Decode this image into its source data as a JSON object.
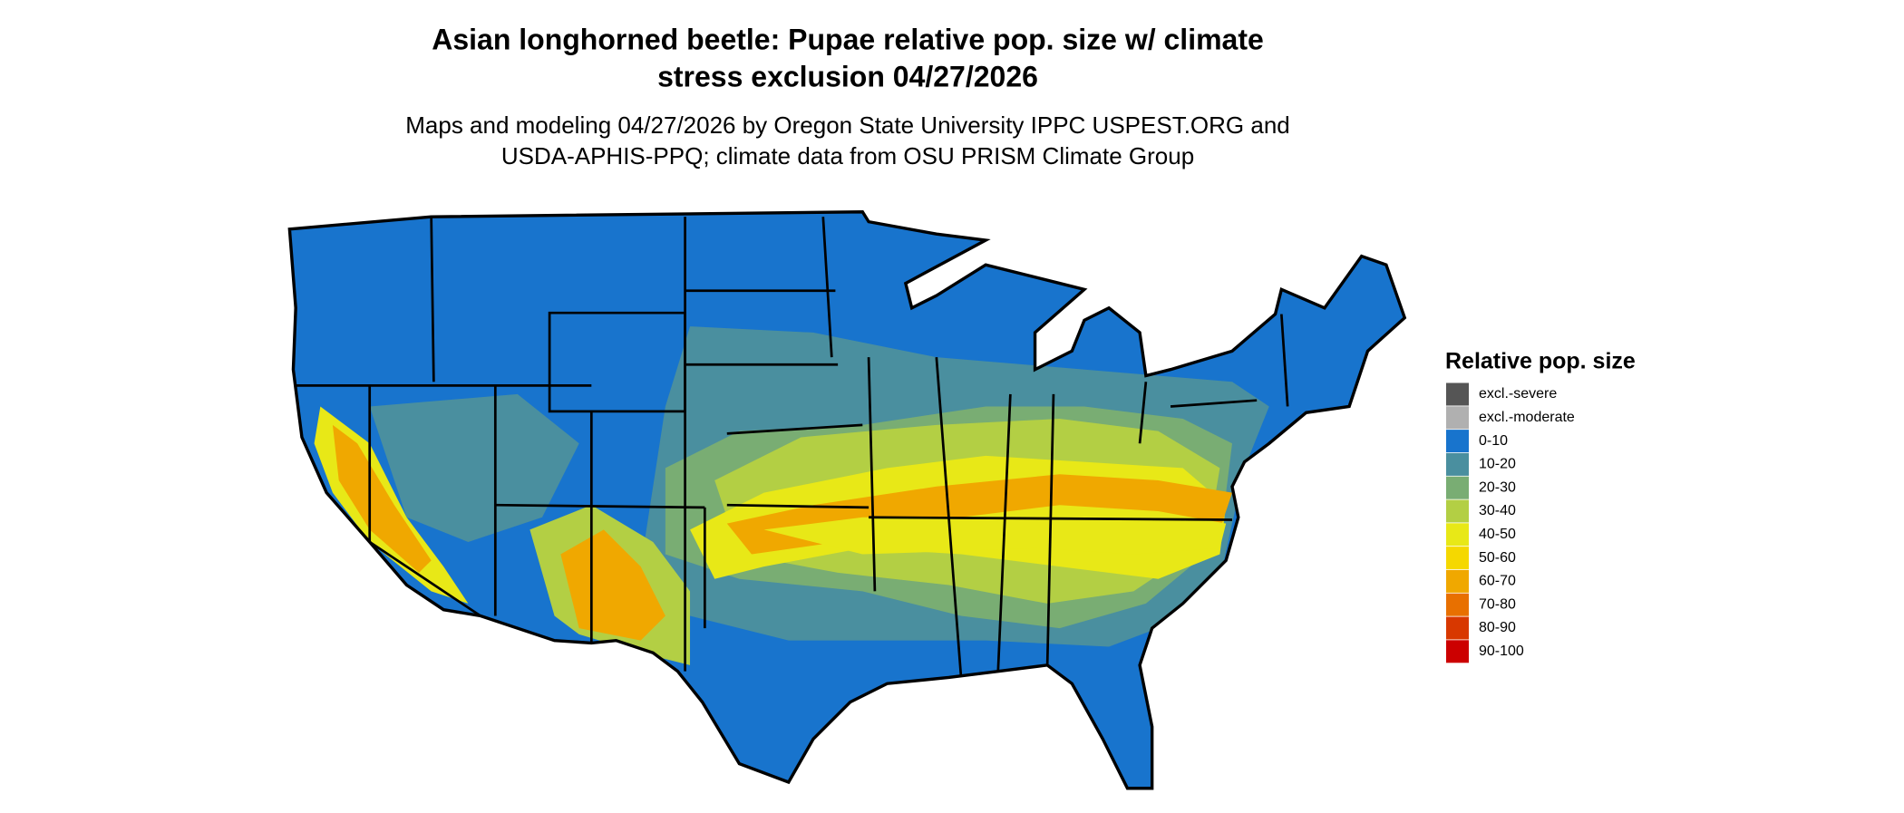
{
  "title": [
    "Asian longhorned beetle: Pupae relative pop. size w/ climate",
    "stress exclusion 04/27/2026"
  ],
  "subtitle": [
    "Maps and modeling 04/27/2026 by Oregon State University IPPC USPEST.ORG and",
    "USDA-APHIS-PPQ; climate data from OSU PRISM Climate Group"
  ],
  "legend": {
    "title": "Relative pop. size",
    "items": [
      {
        "label": "excl.-severe",
        "color": "#555555"
      },
      {
        "label": "excl.-moderate",
        "color": "#b0b0b0"
      },
      {
        "label": "0-10",
        "color": "#1874cd"
      },
      {
        "label": "10-20",
        "color": "#4a8f9f"
      },
      {
        "label": "20-30",
        "color": "#79ad73"
      },
      {
        "label": "30-40",
        "color": "#b3cf44"
      },
      {
        "label": "40-50",
        "color": "#e8e817"
      },
      {
        "label": "50-60",
        "color": "#f5d800"
      },
      {
        "label": "60-70",
        "color": "#f0a800"
      },
      {
        "label": "70-80",
        "color": "#e87000"
      },
      {
        "label": "80-90",
        "color": "#d83800"
      },
      {
        "label": "90-100",
        "color": "#cc0000"
      }
    ]
  }
}
